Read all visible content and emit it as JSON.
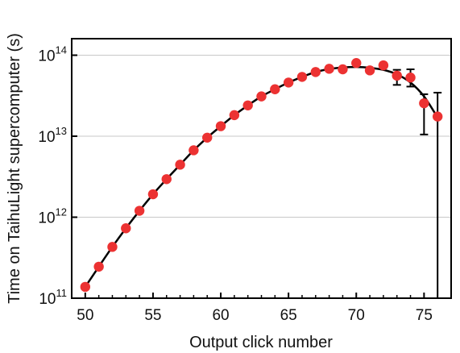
{
  "chart_data": {
    "type": "scatter",
    "title": "",
    "xlabel": "Output click number",
    "ylabel": "Time on TaihuLight supercomputer (s)",
    "xlim": [
      49,
      77
    ],
    "ylim": [
      100000000000.0,
      160000000000000.0
    ],
    "y_scale": "log",
    "grid": "horizontal",
    "x_ticks": [
      50,
      55,
      60,
      65,
      70,
      75
    ],
    "y_ticks": [
      {
        "value": 100000000000.0,
        "base": "10",
        "exponent": "11"
      },
      {
        "value": 1000000000000.0,
        "base": "10",
        "exponent": "12"
      },
      {
        "value": 10000000000000.0,
        "base": "10",
        "exponent": "13"
      },
      {
        "value": 100000000000000.0,
        "base": "10",
        "exponent": "14"
      }
    ],
    "colors": {
      "points": "#ec3232",
      "line": "#000000",
      "grid": "#c8c8c8",
      "errorbars": "#000000"
    },
    "series": [
      {
        "x": [
          50,
          51,
          52,
          53,
          54,
          55,
          56,
          57,
          58,
          59,
          60,
          61,
          62,
          63,
          64,
          65,
          66,
          67,
          68,
          69,
          70,
          71,
          72,
          73,
          74,
          75,
          76
        ],
        "y": [
          138000000000.0,
          245000000000.0,
          430000000000.0,
          730000000000.0,
          1200000000000.0,
          1920000000000.0,
          2950000000000.0,
          4450000000000.0,
          6700000000000.0,
          9600000000000.0,
          13300000000000.0,
          18200000000000.0,
          24000000000000.0,
          31000000000000.0,
          38000000000000.0,
          46000000000000.0,
          54000000000000.0,
          62000000000000.0,
          68000000000000.0,
          67000000000000.0,
          80000000000000.0,
          65000000000000.0,
          75000000000000.0,
          56000000000000.0,
          53000000000000.0,
          25500000000000.0,
          17500000000000.0
        ],
        "error_bars": [
          {
            "x": 73,
            "low": 43000000000000.0,
            "high": 66000000000000.0
          },
          {
            "x": 74,
            "low": 41000000000000.0,
            "high": 67000000000000.0
          },
          {
            "x": 75,
            "low": 10500000000000.0,
            "high": 33000000000000.0
          },
          {
            "x": 76,
            "low": 100000000000.0,
            "high": 34500000000000.0
          }
        ]
      }
    ],
    "fit_curve": {
      "x": [
        50,
        51,
        52,
        53,
        54,
        55,
        56,
        57,
        58,
        59,
        60,
        61,
        62,
        63,
        64,
        65,
        66,
        67,
        68,
        69,
        70,
        71,
        72,
        73,
        74,
        75,
        76
      ],
      "y": [
        138000000000.0,
        245000000000.0,
        430000000000.0,
        730000000000.0,
        1200000000000.0,
        1920000000000.0,
        2950000000000.0,
        4450000000000.0,
        6700000000000.0,
        9600000000000.0,
        13300000000000.0,
        18200000000000.0,
        24000000000000.0,
        31000000000000.0,
        38000000000000.0,
        46000000000000.0,
        54000000000000.0,
        62000000000000.0,
        67500000000000.0,
        70500000000000.0,
        71500000000000.0,
        70000000000000.0,
        66000000000000.0,
        58000000000000.0,
        46000000000000.0,
        31000000000000.0,
        17000000000000.0
      ]
    }
  }
}
